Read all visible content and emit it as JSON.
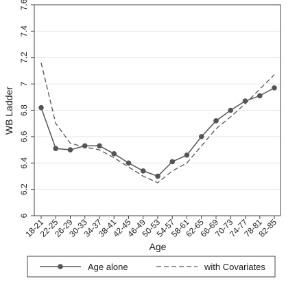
{
  "chart_data": {
    "type": "line",
    "xlabel": "Age",
    "ylabel": "WB Ladder",
    "ylim": [
      6,
      7.6
    ],
    "yticks": [
      "6",
      "6.2",
      "6.4",
      "6.6",
      "6.8",
      "7",
      "7.2",
      "7.4",
      "7.6"
    ],
    "categories": [
      "18-21",
      "22-25",
      "26-29",
      "30-33",
      "34-37",
      "38-41",
      "42-45",
      "46-49",
      "50-53",
      "54-57",
      "58-61",
      "62-65",
      "66-69",
      "70-73",
      "74-77",
      "78-81",
      "82-85"
    ],
    "series": [
      {
        "name": "Age alone",
        "style": "solid-with-markers",
        "color": "#555555",
        "values": [
          6.82,
          6.51,
          6.5,
          6.53,
          6.53,
          6.47,
          6.4,
          6.34,
          6.3,
          6.41,
          6.46,
          6.6,
          6.72,
          6.8,
          6.87,
          6.91,
          6.97
        ]
      },
      {
        "name": "with Covariates",
        "style": "dashed",
        "color": "#555555",
        "values": [
          7.16,
          6.7,
          6.55,
          6.52,
          6.5,
          6.44,
          6.37,
          6.3,
          6.25,
          6.34,
          6.4,
          6.53,
          6.66,
          6.75,
          6.85,
          6.96,
          7.07
        ]
      }
    ],
    "grid": true,
    "legend_position": "bottom"
  }
}
